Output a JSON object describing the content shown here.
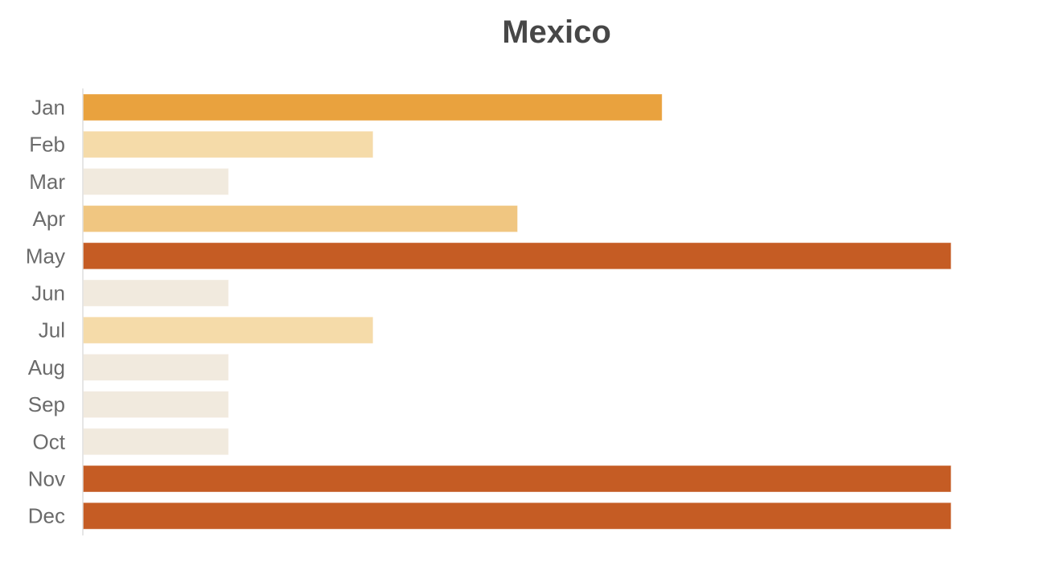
{
  "chart_data": {
    "type": "bar",
    "orientation": "horizontal",
    "title": "Mexico",
    "categories": [
      "Jan",
      "Feb",
      "Mar",
      "Apr",
      "May",
      "Jun",
      "Jul",
      "Aug",
      "Sep",
      "Oct",
      "Nov",
      "Dec"
    ],
    "values": [
      4,
      2,
      1,
      3,
      6,
      1,
      2,
      1,
      1,
      1,
      6,
      6
    ],
    "xlim": [
      0,
      6
    ],
    "grid": false,
    "legend": "none",
    "colors": {
      "1": "#f1eade",
      "2": "#f5dba9",
      "3": "#f0c681",
      "4": "#e9a23e",
      "6": "#c55c24"
    }
  }
}
